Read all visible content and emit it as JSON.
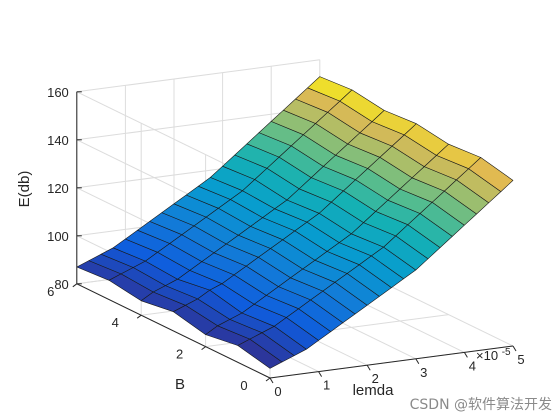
{
  "chart_data": {
    "type": "surface",
    "title": "",
    "xlabel": "lemda",
    "ylabel": "B",
    "zlabel": "E(db)",
    "x_exponent": "×10^-5",
    "x_exponent_base": "×10",
    "x_exponent_power": "-5",
    "xlim": [
      0,
      5
    ],
    "ylim": [
      0,
      6
    ],
    "zlim": [
      80,
      160
    ],
    "x_ticks": [
      "0",
      "1",
      "2",
      "3",
      "4",
      "5"
    ],
    "y_ticks": [
      "0",
      "2",
      "4",
      "6"
    ],
    "z_ticks": [
      "80",
      "100",
      "120",
      "140",
      "160"
    ],
    "grid": true,
    "colormap": "parula",
    "x_grid": [
      0.0,
      0.25,
      0.5,
      0.75,
      1.0,
      1.25,
      1.5,
      1.75,
      2.0,
      2.25,
      2.5,
      2.75,
      3.0,
      3.25,
      3.5,
      3.75,
      4.0,
      4.25,
      4.5,
      4.75,
      5.0
    ],
    "y_grid": [
      0,
      1,
      2,
      3,
      4,
      5,
      6
    ],
    "z_rows": [
      [
        84,
        86,
        88,
        90,
        93,
        96,
        99,
        102,
        105,
        108,
        111,
        114,
        117,
        121,
        125,
        129,
        133,
        137,
        141,
        145,
        149
      ],
      [
        87,
        89,
        91,
        93,
        96,
        99,
        102,
        105,
        108,
        111,
        114,
        117,
        120,
        124,
        128,
        132,
        136,
        140,
        144,
        148,
        152
      ],
      [
        85,
        88,
        90,
        92,
        95,
        98,
        101,
        104,
        107,
        110,
        113,
        116,
        119,
        123,
        127,
        131,
        135,
        139,
        143,
        147,
        151
      ],
      [
        88,
        90,
        92,
        95,
        97,
        100,
        103,
        106,
        109,
        112,
        115,
        118,
        121,
        125,
        129,
        133,
        137,
        141,
        145,
        149,
        153
      ],
      [
        86,
        89,
        91,
        93,
        96,
        99,
        102,
        105,
        108,
        111,
        114,
        117,
        120,
        124,
        128,
        132,
        136,
        140,
        144,
        148,
        152
      ],
      [
        88,
        90,
        92,
        94,
        97,
        100,
        103,
        106,
        109,
        112,
        115,
        118,
        122,
        126,
        130,
        134,
        138,
        142,
        146,
        150,
        154
      ],
      [
        87,
        89,
        91,
        93,
        96,
        99,
        102,
        105,
        108,
        111,
        114,
        117,
        121,
        125,
        129,
        133,
        137,
        141,
        145,
        149,
        153
      ]
    ]
  },
  "watermark": {
    "text": "CSDN @软件算法开发"
  }
}
